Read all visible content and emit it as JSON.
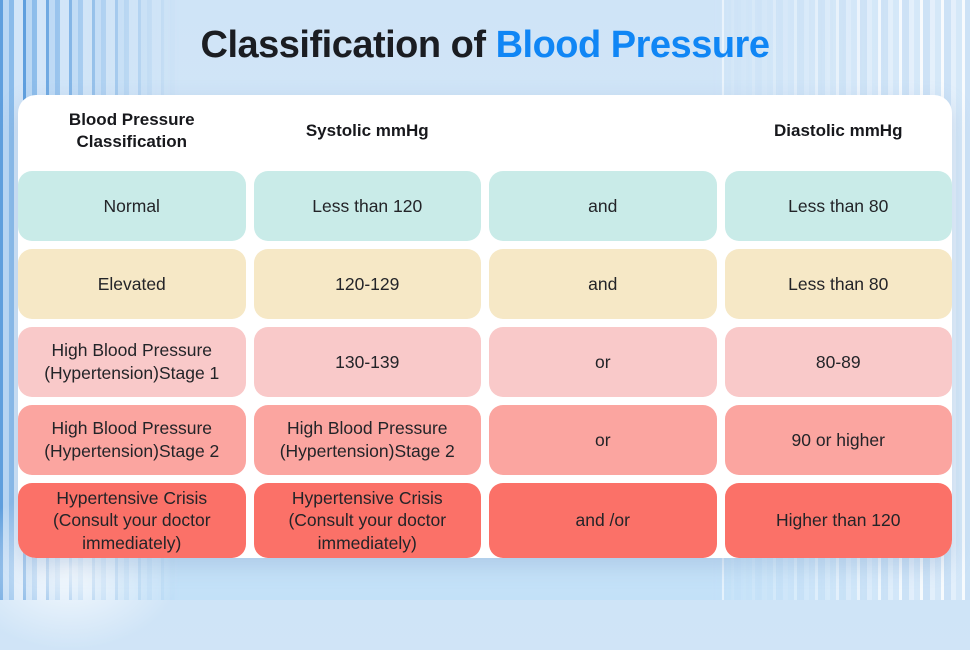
{
  "title": {
    "prefix": "Classification of ",
    "highlight": "Blood Pressure"
  },
  "colors": {
    "title_text": "#1b1d22",
    "title_accent": "#1086f5",
    "row_normal": "#c9ebe8",
    "row_elevated": "#f6e8c6",
    "row_stage1": "#f9c9c9",
    "row_stage2": "#fba5a0",
    "row_crisis": "#fb7168"
  },
  "chart_data": {
    "type": "table",
    "title": "Classification of Blood Pressure",
    "columns": [
      "Blood Pressure Classification",
      "Systolic mmHg",
      "",
      "Diastolic mmHg"
    ],
    "rows": [
      {
        "color": "#c9ebe8",
        "cells": [
          "Normal",
          "Less than 120",
          "and",
          "Less than 80"
        ]
      },
      {
        "color": "#f6e8c6",
        "cells": [
          "Elevated",
          "120-129",
          "and",
          "Less than 80"
        ]
      },
      {
        "color": "#f9c9c9",
        "cells": [
          "High Blood Pressure (Hypertension)Stage 1",
          "130-139",
          "or",
          "80-89"
        ]
      },
      {
        "color": "#fba5a0",
        "cells": [
          "High Blood Pressure (Hypertension)Stage 2",
          "High Blood Pressure (Hypertension)Stage 2",
          "or",
          "90 or higher"
        ]
      },
      {
        "color": "#fb7168",
        "cells": [
          "Hypertensive Crisis (Consult your doctor immediately)",
          "Hypertensive Crisis (Consult your doctor immediately)",
          "and /or",
          "Higher than 120"
        ]
      }
    ]
  }
}
